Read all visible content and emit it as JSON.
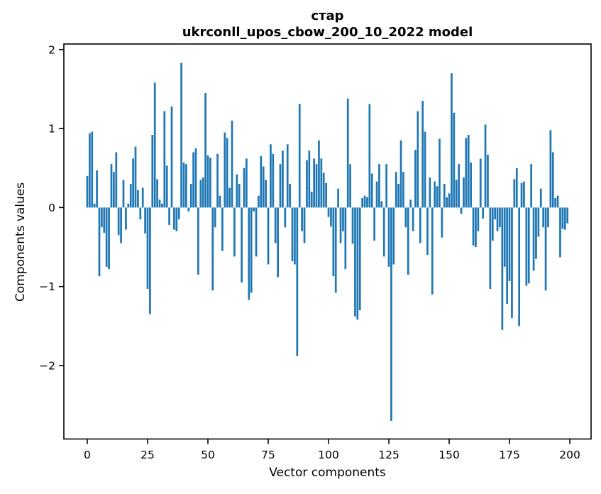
{
  "figure": {
    "title_line1": "стар",
    "title_line2": "ukrconll_upos_cbow_200_10_2022 model",
    "xlabel": "Vector components",
    "ylabel": "Components values"
  },
  "chart_data": {
    "type": "bar",
    "title": "стар\nukrconll_upos_cbow_200_10_2022 model",
    "xlabel": "Vector components",
    "ylabel": "Components values",
    "bar_color": "#1f77b4",
    "background_color": "#ffffff",
    "spine_color": "#000000",
    "grid": false,
    "legend": "none",
    "xlim": [
      -9.7,
      208.8
    ],
    "ylim": [
      -2.93,
      2.07
    ],
    "xticks": [
      0,
      25,
      50,
      75,
      100,
      125,
      150,
      175,
      200
    ],
    "yticks": [
      -2,
      -1,
      0,
      1,
      2
    ],
    "yticklabels": [
      "−2",
      "−1",
      "0",
      "1",
      "2"
    ],
    "n_components": 200,
    "values": [
      0.4,
      0.94,
      0.96,
      0.05,
      0.47,
      -0.87,
      -0.25,
      -0.32,
      -0.75,
      -0.78,
      0.55,
      0.45,
      0.7,
      -0.35,
      -0.45,
      0.35,
      -0.28,
      0.05,
      0.3,
      0.62,
      0.77,
      0.22,
      -0.15,
      0.25,
      -0.33,
      -1.03,
      -1.35,
      0.92,
      1.58,
      0.36,
      0.1,
      0.05,
      1.22,
      0.53,
      -0.22,
      1.28,
      -0.28,
      -0.3,
      -0.15,
      1.83,
      0.57,
      0.55,
      -0.05,
      0.3,
      0.7,
      0.75,
      -0.85,
      0.35,
      0.38,
      1.45,
      0.66,
      0.63,
      -1.05,
      -0.25,
      0.68,
      0.15,
      -0.55,
      0.95,
      0.88,
      0.25,
      1.1,
      -0.62,
      0.42,
      0.3,
      -0.95,
      0.5,
      0.62,
      -1.17,
      -1.08,
      -0.05,
      -0.62,
      0.15,
      0.65,
      0.52,
      0.35,
      -0.72,
      0.8,
      0.68,
      -0.45,
      -0.88,
      0.55,
      0.72,
      -0.25,
      0.8,
      0.3,
      -0.68,
      -0.72,
      -1.88,
      1.31,
      -0.3,
      -0.45,
      0.6,
      0.72,
      0.2,
      0.62,
      0.55,
      0.85,
      0.62,
      0.44,
      0.31,
      -0.12,
      -0.24,
      -0.87,
      -1.08,
      0.24,
      -0.45,
      -0.3,
      -0.78,
      1.38,
      0.55,
      -0.46,
      -1.38,
      -1.42,
      -1.3,
      0.12,
      0.15,
      0.13,
      1.31,
      0.43,
      -0.42,
      0.33,
      0.55,
      0.08,
      -0.62,
      0.55,
      -0.75,
      -2.7,
      -0.72,
      0.45,
      0.3,
      0.85,
      0.45,
      -0.25,
      -0.85,
      0.1,
      -0.3,
      0.73,
      1.22,
      -0.45,
      1.35,
      0.96,
      -0.6,
      0.38,
      -1.1,
      0.33,
      0.27,
      0.87,
      -0.38,
      0.3,
      0.13,
      0.18,
      1.7,
      1.2,
      0.35,
      0.55,
      -0.08,
      0.38,
      0.88,
      0.92,
      0.57,
      -0.48,
      -0.5,
      -0.3,
      0.62,
      -0.14,
      1.05,
      0.67,
      -1.03,
      -0.42,
      -0.15,
      -0.3,
      -0.25,
      -1.55,
      -0.75,
      -1.22,
      -0.93,
      -1.4,
      0.36,
      0.5,
      -1.5,
      0.31,
      0.33,
      -0.99,
      -0.96,
      0.55,
      -0.8,
      -0.65,
      -0.37,
      0.24,
      -0.25,
      -1.05,
      -0.25,
      0.98,
      0.7,
      0.12,
      0.15,
      -0.63,
      -0.27,
      -0.28,
      -0.2
    ]
  }
}
